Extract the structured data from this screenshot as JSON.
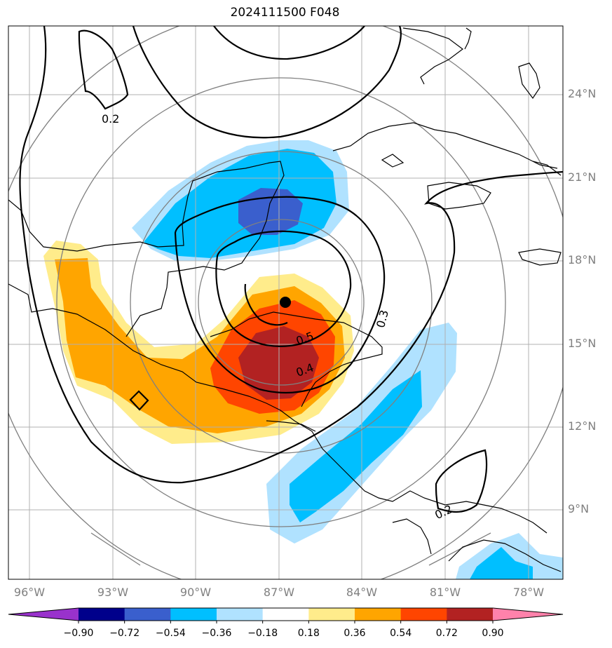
{
  "title": "2024111500 F048",
  "latitude_labels": [
    "24°N",
    "21°N",
    "18°N",
    "15°N",
    "12°N",
    "9°N"
  ],
  "longitude_labels": [
    "96°W",
    "93°W",
    "90°W",
    "87°W",
    "84°W",
    "81°W",
    "78°W"
  ],
  "contour_labels": [
    "0.2",
    "0.3",
    "0.5",
    "0.4",
    "0.2"
  ],
  "colorbar": {
    "levels": [
      "−0.90",
      "−0.72",
      "−0.54",
      "−0.36",
      "−0.18",
      "0.18",
      "0.36",
      "0.54",
      "0.72",
      "0.90"
    ],
    "colors": [
      "#9932cc",
      "#00008b",
      "#3a5fcd",
      "#00bfff",
      "#b0e2ff",
      "#ffffff",
      "#ffec8b",
      "#ffa500",
      "#ff4500",
      "#b22222",
      "#ff82ab"
    ]
  },
  "storm_center": {
    "lat": 16.5,
    "lon": "86.8°W"
  }
}
